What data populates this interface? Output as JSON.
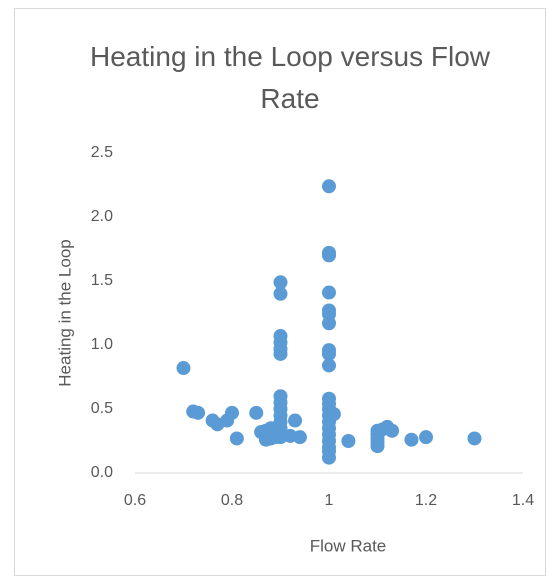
{
  "chart_data": {
    "type": "scatter",
    "title": "Heating in the Loop versus Flow Rate",
    "x_label": "Flow Rate",
    "y_label": "Heating in the Loop",
    "color": "#5b9bd5",
    "grid": false,
    "xlim": [
      0.6,
      1.4
    ],
    "xticks": [
      0.6,
      0.8,
      1,
      1.2,
      1.4
    ],
    "ylim": [
      0,
      2.5
    ],
    "yticks": [
      {
        "value": 0,
        "label": "0.0"
      },
      {
        "value": 0.5,
        "label": "0.5"
      },
      {
        "value": 1,
        "label": "1.0"
      },
      {
        "value": 1.5,
        "label": "1.5"
      },
      {
        "value": 2,
        "label": "2.0"
      },
      {
        "value": 2.5,
        "label": "2.5"
      }
    ],
    "x": [
      0.7,
      0.72,
      0.73,
      0.76,
      0.77,
      0.79,
      0.8,
      0.81,
      0.85,
      0.86,
      0.87,
      0.88,
      0.87,
      0.88,
      0.89,
      0.9,
      0.9,
      0.9,
      0.9,
      0.9,
      0.9,
      0.9,
      0.9,
      0.9,
      0.9,
      0.9,
      0.9,
      0.9,
      0.9,
      0.92,
      0.93,
      0.94,
      1,
      1,
      1,
      1,
      1,
      1,
      1,
      1,
      1,
      1,
      1,
      1,
      1,
      1,
      1,
      1,
      1,
      1,
      1,
      1,
      1,
      1.01,
      1.04,
      1.1,
      1.1,
      1.1,
      1.1,
      1.1,
      1.11,
      1.12,
      1.13,
      1.17,
      1.2,
      1.3
    ],
    "values": [
      0.82,
      0.48,
      0.47,
      0.41,
      0.38,
      0.41,
      0.47,
      0.27,
      0.47,
      0.32,
      0.33,
      0.27,
      0.26,
      0.35,
      0.28,
      1.49,
      1.4,
      1.07,
      1.02,
      0.97,
      0.93,
      0.6,
      0.55,
      0.5,
      0.45,
      0.4,
      0.35,
      0.3,
      0.28,
      0.29,
      0.41,
      0.28,
      2.24,
      1.72,
      1.7,
      1.41,
      1.27,
      1.24,
      1.17,
      0.96,
      0.93,
      0.84,
      0.58,
      0.54,
      0.5,
      0.45,
      0.4,
      0.35,
      0.3,
      0.25,
      0.2,
      0.17,
      0.12,
      0.46,
      0.25,
      0.33,
      0.3,
      0.27,
      0.24,
      0.21,
      0.34,
      0.36,
      0.33,
      0.26,
      0.28,
      0.27
    ]
  }
}
